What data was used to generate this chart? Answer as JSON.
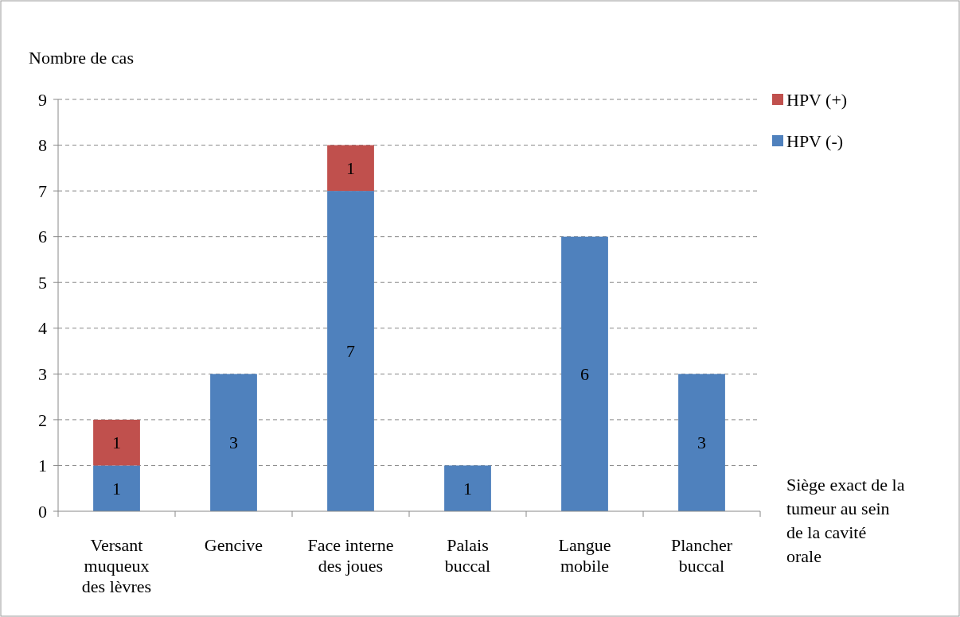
{
  "chart_data": {
    "type": "bar",
    "stacked": true,
    "ylabel": "Nombre de cas",
    "xlabel": "Siège exact de la\ntumeur au sein\nde la cavité\norale",
    "categories": [
      "Versant\nmuqueux\ndes lèvres",
      "Gencive",
      "Face interne\ndes joues",
      "Palais\nbuccal",
      "Langue\nmobile",
      "Plancher\nbuccal"
    ],
    "series": [
      {
        "name": "HPV (-)",
        "color": "#4f81bd",
        "values": [
          1,
          3,
          7,
          1,
          6,
          3
        ]
      },
      {
        "name": "HPV (+)",
        "color": "#c0504d",
        "values": [
          1,
          null,
          1,
          null,
          null,
          null
        ]
      }
    ],
    "ylim": [
      0,
      9
    ],
    "yticks": [
      0,
      1,
      2,
      3,
      4,
      5,
      6,
      7,
      8,
      9
    ],
    "grid": "y",
    "legend": "top right",
    "data_labels": true
  }
}
